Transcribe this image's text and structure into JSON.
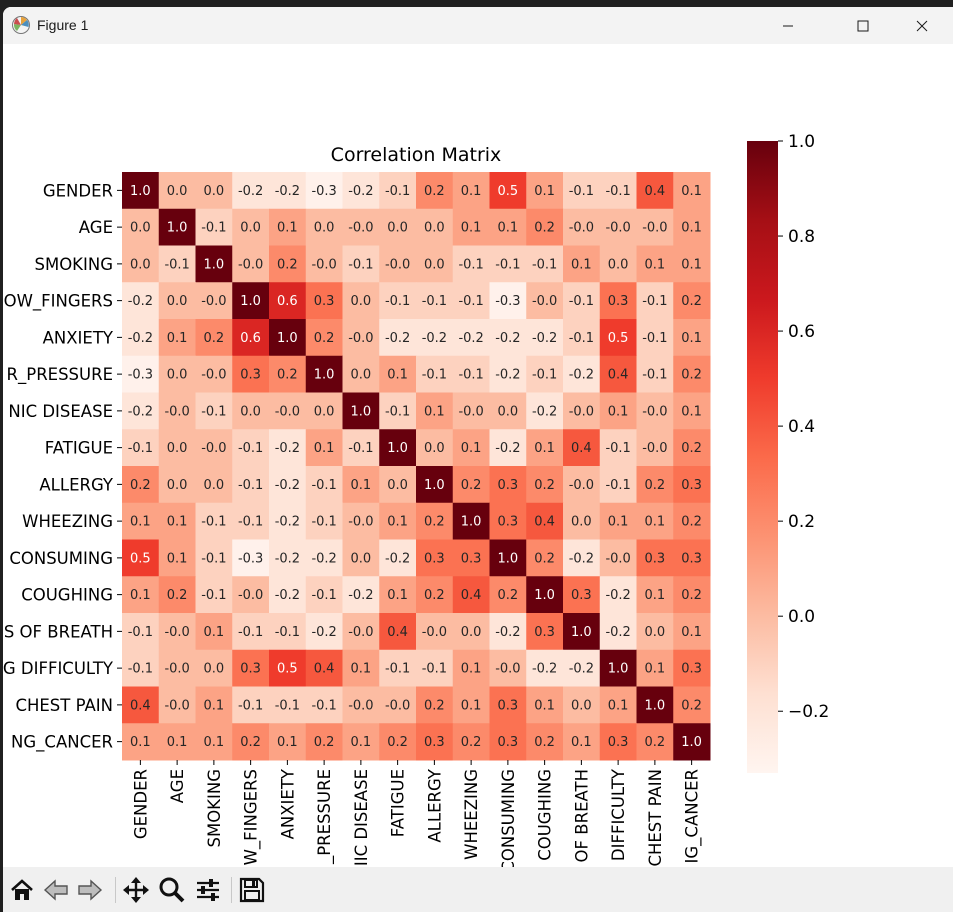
{
  "window": {
    "title": "Figure 1",
    "minimize_icon": "minimize-icon",
    "maximize_icon": "maximize-icon",
    "close_icon": "close-icon"
  },
  "toolbar": {
    "buttons": [
      "home-icon",
      "back-arrow-icon",
      "forward-arrow-icon",
      "pan-move-icon",
      "zoom-magnifier-icon",
      "configure-subplots-icon",
      "save-floppy-icon"
    ]
  },
  "chart_data": {
    "type": "heatmap",
    "title": "Correlation Matrix",
    "row_labels": [
      "GENDER",
      "AGE",
      "SMOKING",
      "OW_FINGERS",
      "ANXIETY",
      "R_PRESSURE",
      "NIC DISEASE",
      "FATIGUE",
      "ALLERGY",
      "WHEEZING",
      "CONSUMING",
      "COUGHING",
      "S OF BREATH",
      "G DIFFICULTY",
      "CHEST PAIN",
      "NG_CANCER"
    ],
    "col_labels": [
      "GENDER",
      "AGE",
      "SMOKING",
      "W_FINGERS",
      "ANXIETY",
      "_PRESSURE",
      "IIC DISEASE",
      "FATIGUE",
      "ALLERGY",
      "WHEEZING",
      "CONSUMING",
      "COUGHING",
      "OF BREATH",
      "DIFFICULTY",
      "CHEST PAIN",
      "IG_CANCER"
    ],
    "values": [
      [
        1.0,
        0.0,
        0.0,
        -0.2,
        -0.2,
        -0.3,
        -0.2,
        -0.1,
        0.2,
        0.1,
        0.5,
        0.1,
        -0.1,
        -0.1,
        0.4,
        0.1
      ],
      [
        0.0,
        1.0,
        -0.1,
        0.0,
        0.1,
        0.0,
        -0.0,
        0.0,
        0.0,
        0.1,
        0.1,
        0.2,
        -0.0,
        -0.0,
        -0.0,
        0.1
      ],
      [
        0.0,
        -0.1,
        1.0,
        -0.0,
        0.2,
        -0.0,
        -0.1,
        -0.0,
        0.0,
        -0.1,
        -0.1,
        -0.1,
        0.1,
        0.0,
        0.1,
        0.1
      ],
      [
        -0.2,
        0.0,
        -0.0,
        1.0,
        0.6,
        0.3,
        0.0,
        -0.1,
        -0.1,
        -0.1,
        -0.3,
        -0.0,
        -0.1,
        0.3,
        -0.1,
        0.2
      ],
      [
        -0.2,
        0.1,
        0.2,
        0.6,
        1.0,
        0.2,
        -0.0,
        -0.2,
        -0.2,
        -0.2,
        -0.2,
        -0.2,
        -0.1,
        0.5,
        -0.1,
        0.1
      ],
      [
        -0.3,
        0.0,
        -0.0,
        0.3,
        0.2,
        1.0,
        0.0,
        0.1,
        -0.1,
        -0.1,
        -0.2,
        -0.1,
        -0.2,
        0.4,
        -0.1,
        0.2
      ],
      [
        -0.2,
        -0.0,
        -0.1,
        0.0,
        -0.0,
        0.0,
        1.0,
        -0.1,
        0.1,
        -0.0,
        0.0,
        -0.2,
        -0.0,
        0.1,
        -0.0,
        0.1
      ],
      [
        -0.1,
        0.0,
        -0.0,
        -0.1,
        -0.2,
        0.1,
        -0.1,
        1.0,
        0.0,
        0.1,
        -0.2,
        0.1,
        0.4,
        -0.1,
        -0.0,
        0.2
      ],
      [
        0.2,
        0.0,
        0.0,
        -0.1,
        -0.2,
        -0.1,
        0.1,
        0.0,
        1.0,
        0.2,
        0.3,
        0.2,
        -0.0,
        -0.1,
        0.2,
        0.3
      ],
      [
        0.1,
        0.1,
        -0.1,
        -0.1,
        -0.2,
        -0.1,
        -0.0,
        0.1,
        0.2,
        1.0,
        0.3,
        0.4,
        0.0,
        0.1,
        0.1,
        0.2
      ],
      [
        0.5,
        0.1,
        -0.1,
        -0.3,
        -0.2,
        -0.2,
        0.0,
        -0.2,
        0.3,
        0.3,
        1.0,
        0.2,
        -0.2,
        -0.0,
        0.3,
        0.3
      ],
      [
        0.1,
        0.2,
        -0.1,
        -0.0,
        -0.2,
        -0.1,
        -0.2,
        0.1,
        0.2,
        0.4,
        0.2,
        1.0,
        0.3,
        -0.2,
        0.1,
        0.2
      ],
      [
        -0.1,
        -0.0,
        0.1,
        -0.1,
        -0.1,
        -0.2,
        -0.0,
        0.4,
        -0.0,
        0.0,
        -0.2,
        0.3,
        1.0,
        -0.2,
        0.0,
        0.1
      ],
      [
        -0.1,
        -0.0,
        0.0,
        0.3,
        0.5,
        0.4,
        0.1,
        -0.1,
        -0.1,
        0.1,
        -0.0,
        -0.2,
        -0.2,
        1.0,
        0.1,
        0.3
      ],
      [
        0.4,
        -0.0,
        0.1,
        -0.1,
        -0.1,
        -0.1,
        -0.0,
        -0.0,
        0.2,
        0.1,
        0.3,
        0.1,
        0.0,
        0.1,
        1.0,
        0.2
      ],
      [
        0.1,
        0.1,
        0.1,
        0.2,
        0.1,
        0.2,
        0.1,
        0.2,
        0.3,
        0.2,
        0.3,
        0.2,
        0.1,
        0.3,
        0.2,
        1.0
      ]
    ],
    "colorbar": {
      "ticks": [
        "1.0",
        "0.8",
        "0.6",
        "0.4",
        "0.2",
        "0.0",
        "−0.2"
      ],
      "tick_values": [
        1.0,
        0.8,
        0.6,
        0.4,
        0.2,
        0.0,
        -0.2
      ],
      "range": [
        -0.33,
        1.0
      ]
    },
    "colormap": "Reds",
    "grid": false
  }
}
